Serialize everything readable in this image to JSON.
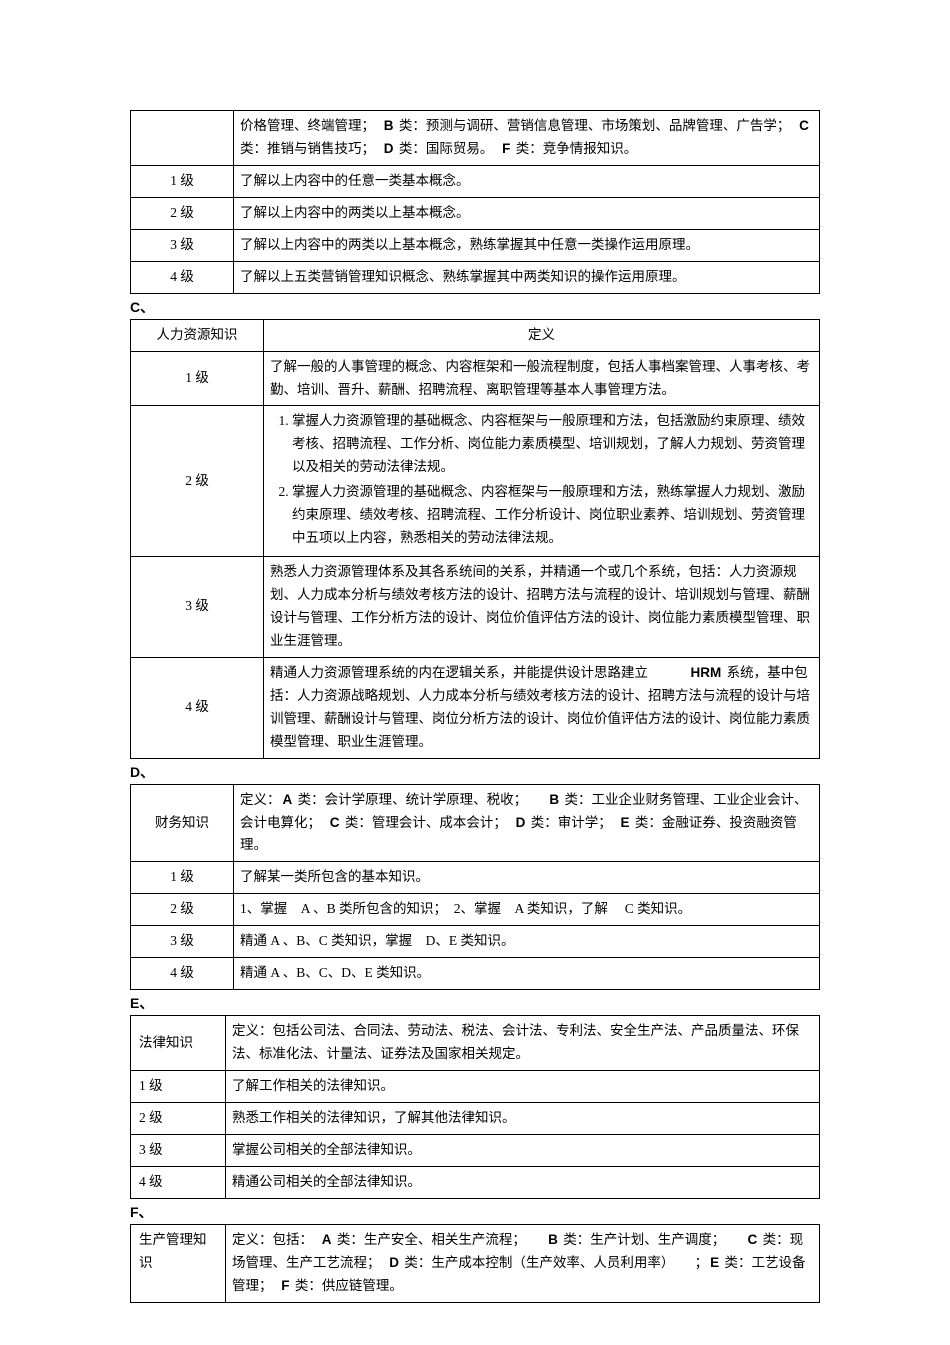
{
  "tableB_cont": {
    "def_cont": "价格管理、终端管理；　<b>B</b> 类：预测与调研、营销信息管理、市场策划、品牌管理、广告学；　<b>C</b> 类：推销与销售技巧；　<b>D</b> 类：国际贸易。　<b>F</b> 类：竞争情报知识。",
    "rows": [
      {
        "level": "1 级",
        "desc": "了解以上内容中的任意一类基本概念。"
      },
      {
        "level": "2 级",
        "desc": "了解以上内容中的两类以上基本概念。"
      },
      {
        "level": "3 级",
        "desc": "了解以上内容中的两类以上基本概念，熟练掌握其中任意一类操作运用原理。"
      },
      {
        "level": "4 级",
        "desc": "了解以上五类营销管理知识概念、熟练掌握其中两类知识的操作运用原理。"
      }
    ]
  },
  "labelC": "C、",
  "tableC": {
    "header": {
      "col1": "人力资源知识",
      "col2": "定义"
    },
    "rows": [
      {
        "level": "1 级",
        "desc": "了解一般的人事管理的概念、内容框架和一般流程制度，包括人事档案管理、人事考核、考勤、培训、晋升、薪酬、招聘流程、离职管理等基本人事管理方法。"
      },
      {
        "level": "2 级",
        "desc_items": [
          "掌握人力资源管理的基础概念、内容框架与一般原理和方法，包括激励约束原理、绩效考核、招聘流程、工作分析、岗位能力素质模型、培训规划，了解人力规划、劳资管理以及相关的劳动法律法规。",
          "掌握人力资源管理的基础概念、内容框架与一般原理和方法，熟练掌握人力规划、激励约束原理、绩效考核、招聘流程、工作分析设计、岗位职业素养、培训规划、劳资管理中五项以上内容，熟悉相关的劳动法律法规。"
        ]
      },
      {
        "level": "3 级",
        "desc": "熟悉人力资源管理体系及其各系统间的关系，并精通一个或几个系统，包括：人力资源规划、人力成本分析与绩效考核方法的设计、招聘方法与流程的设计、培训规划与管理、薪酬设计与管理、工作分析方法的设计、岗位价值评估方法的设计、岗位能力素质模型管理、职业生涯管理。"
      },
      {
        "level": "4 级",
        "desc": "精通人力资源管理系统的内在逻辑关系，并能提供设计思路建立　　　<b>HRM</b> 系统，基中包括：人力资源战略规划、人力成本分析与绩效考核方法的设计、招聘方法与流程的设计与培训管理、薪酬设计与管理、岗位分析方法的设计、岗位价值评估方法的设计、岗位能力素质模型管理、职业生涯管理。"
      }
    ]
  },
  "labelD": "D、",
  "tableD": {
    "header_col1": "财务知识",
    "def": "定义：<b>A</b> 类：会计学原理、统计学原理、税收；　　<b>B</b> 类：工业企业财务管理、工业企业会计、会计电算化；　<b>C</b> 类：管理会计、成本会计；　<b>D</b> 类：审计学；　<b>E</b> 类：金融证券、投资融资管理。",
    "rows": [
      {
        "level": "1 级",
        "desc": "了解某一类所包含的基本知识。"
      },
      {
        "level": "2 级",
        "desc": "1、掌握　A 、B 类所包含的知识；　2、掌握　A 类知识，了解　 C 类知识。"
      },
      {
        "level": "3 级",
        "desc": "精通 A 、B、C 类知识，掌握　D、E 类知识。"
      },
      {
        "level": "4 级",
        "desc": "精通 A 、B、C、D、E 类知识。"
      }
    ]
  },
  "labelE": "E、",
  "tableE": {
    "header_col1": "法律知识",
    "def": "定义：包括公司法、合同法、劳动法、税法、会计法、专利法、安全生产法、产品质量法、环保法、标准化法、计量法、证券法及国家相关规定。",
    "rows": [
      {
        "level": "1 级",
        "desc": "了解工作相关的法律知识。"
      },
      {
        "level": "2 级",
        "desc": "熟悉工作相关的法律知识，了解其他法律知识。"
      },
      {
        "level": "3 级",
        "desc": "掌握公司相关的全部法律知识。"
      },
      {
        "level": "4 级",
        "desc": "精通公司相关的全部法律知识。"
      }
    ]
  },
  "labelF": "F、",
  "tableF": {
    "header_col1": "生产管理知识",
    "def": "定义：包括：　<b>A</b> 类：生产安全、相关生产流程；　　<b>B</b> 类：生产计划、生产调度；　　<b>C</b> 类：现场管理、生产工艺流程；　<b>D</b> 类：生产成本控制（生产效率、人员利用率）　　；<b>E</b> 类：工艺设备管理；　<b>F</b> 类：供应链管理。"
  }
}
